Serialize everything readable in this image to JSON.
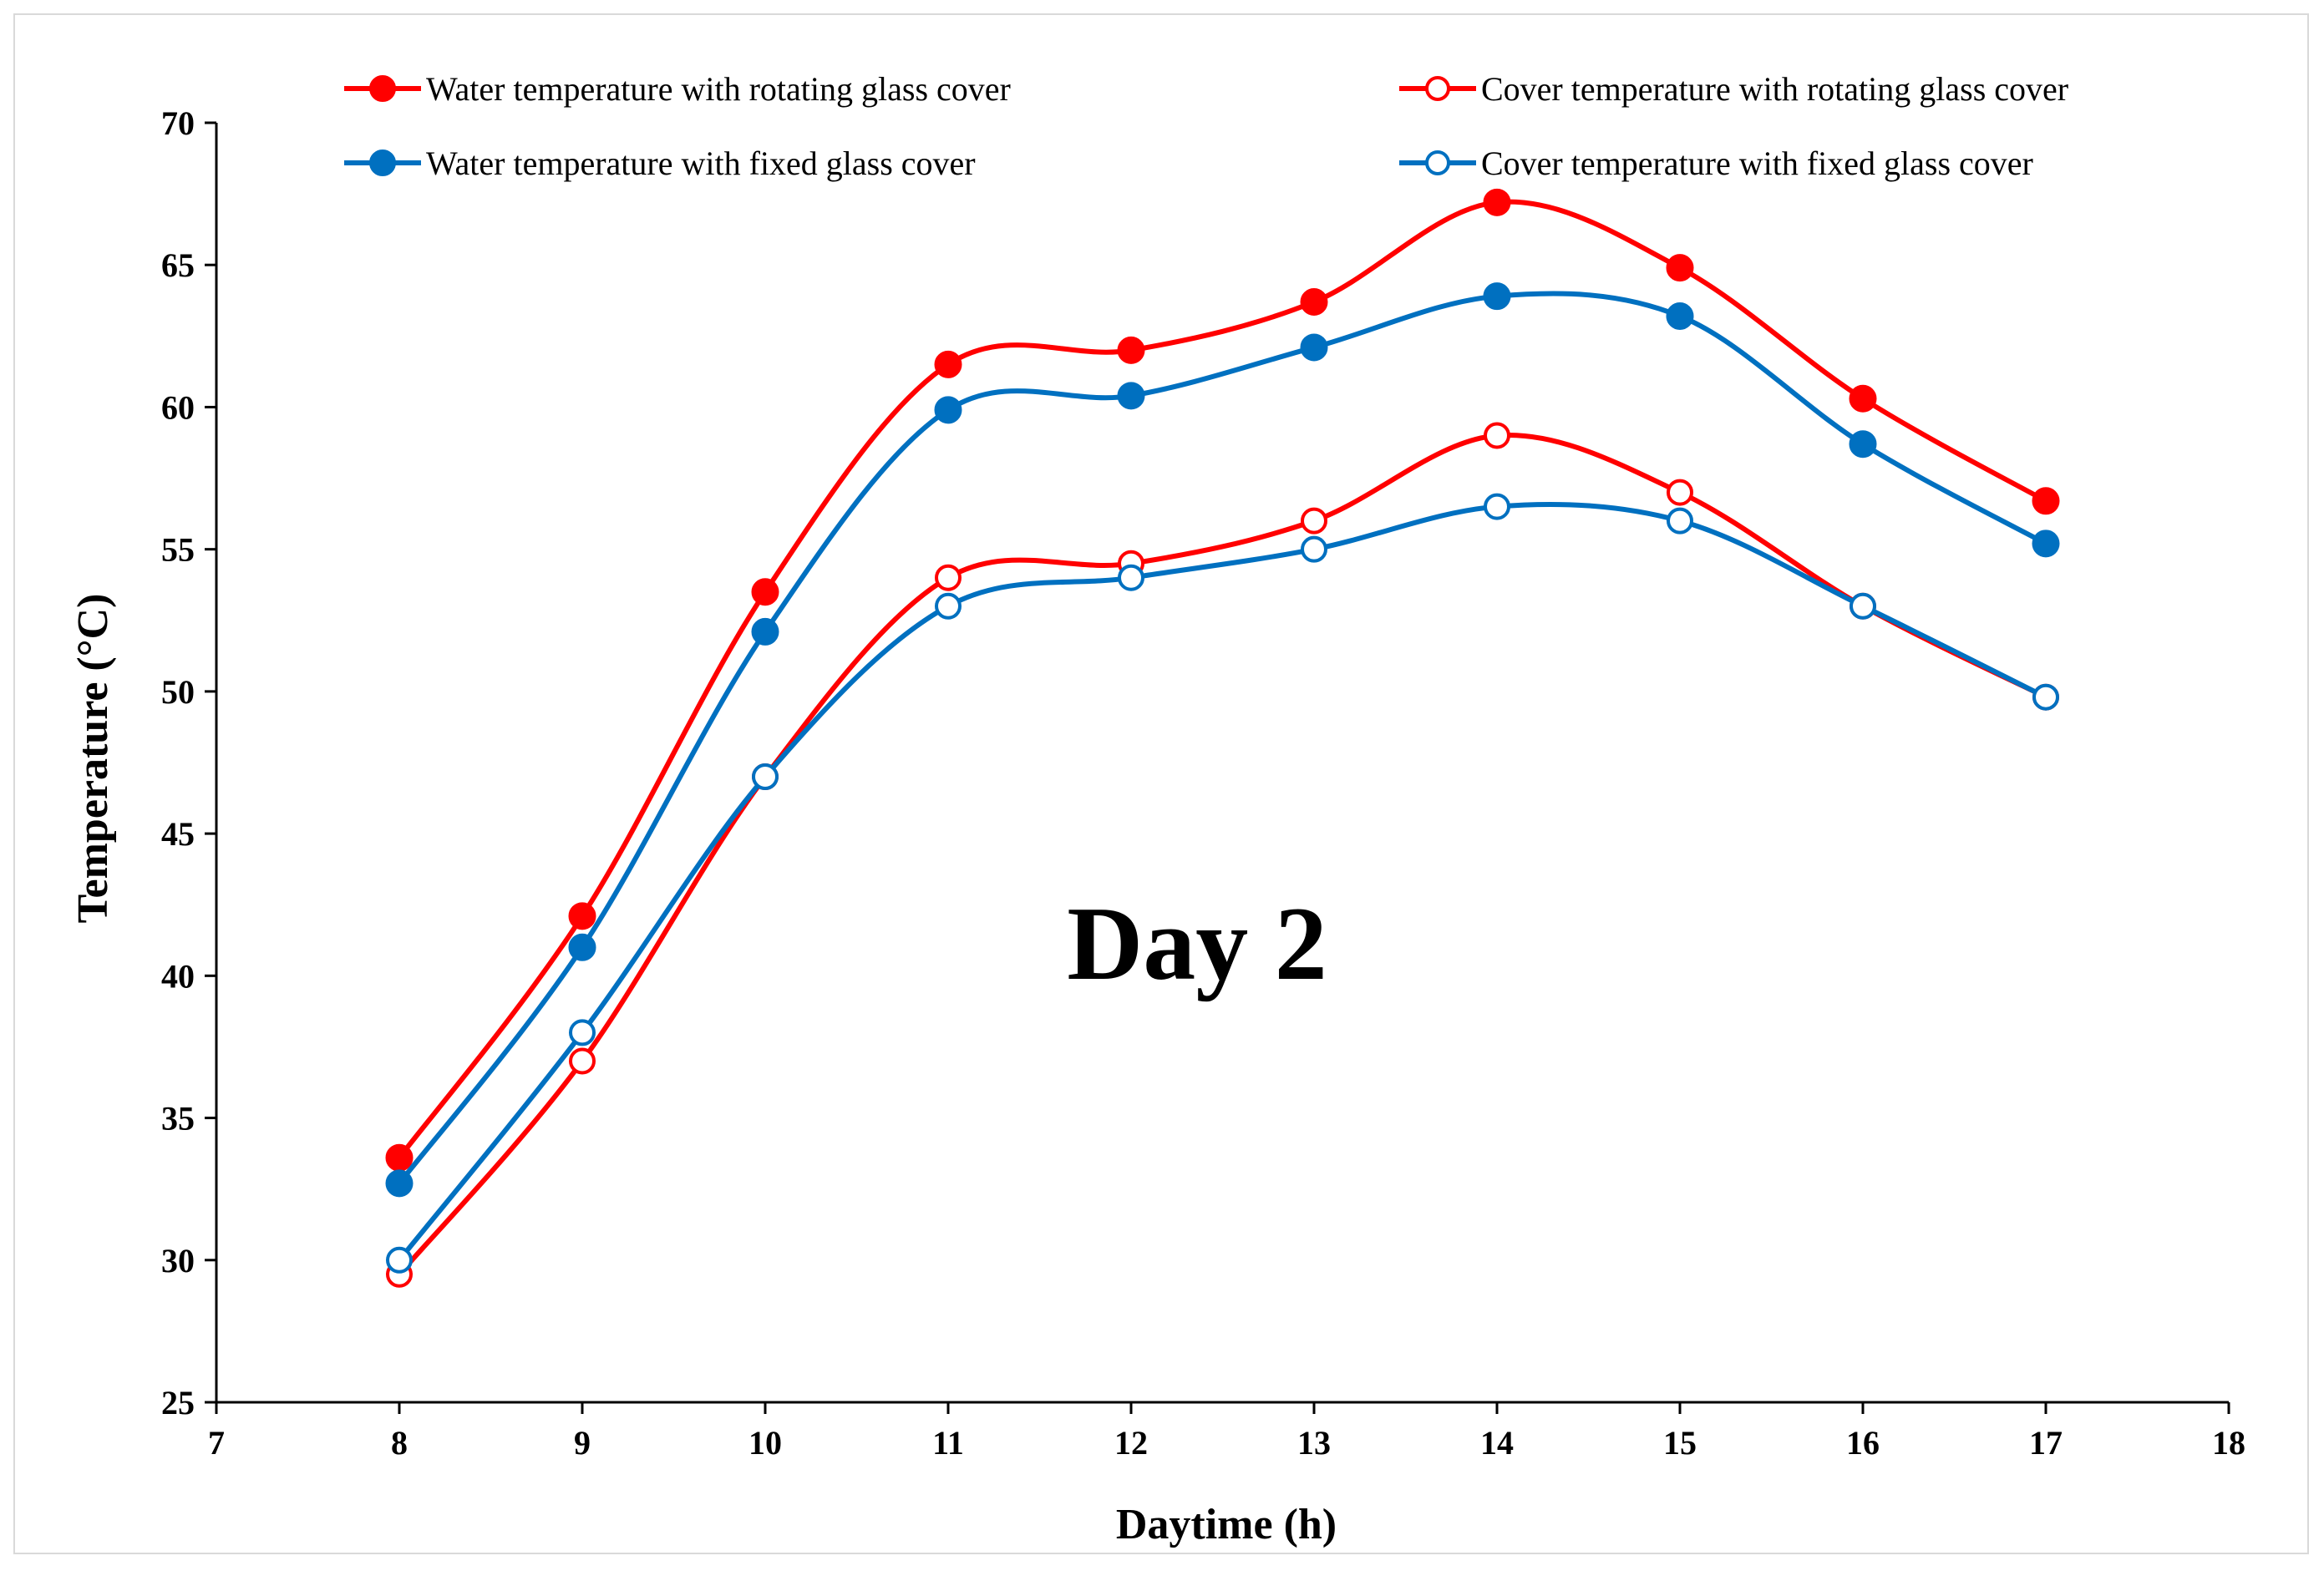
{
  "chart_data": {
    "type": "line",
    "title": "",
    "annotation": "Day 2",
    "xlabel": "Daytime (h)",
    "ylabel": "Temperature (°C)",
    "xlim": [
      7,
      18
    ],
    "ylim": [
      25,
      70
    ],
    "xticks": [
      7,
      8,
      9,
      10,
      11,
      12,
      13,
      14,
      15,
      16,
      17,
      18
    ],
    "yticks": [
      25,
      30,
      35,
      40,
      45,
      50,
      55,
      60,
      65,
      70
    ],
    "grid": false,
    "legend_position": "top",
    "x": [
      8,
      9,
      10,
      11,
      12,
      13,
      14,
      15,
      16,
      17
    ],
    "series": [
      {
        "name": "Water temperature with rotating glass cover",
        "color": "#ff0000",
        "marker": "filled-circle",
        "values": [
          33.6,
          42.1,
          53.5,
          61.5,
          62.0,
          63.7,
          67.2,
          64.9,
          60.3,
          56.7
        ]
      },
      {
        "name": "Cover temperature with rotating glass cover",
        "color": "#ff0000",
        "marker": "open-circle",
        "values": [
          29.5,
          37.0,
          47.0,
          54.0,
          54.5,
          56.0,
          59.0,
          57.0,
          53.0,
          49.8
        ]
      },
      {
        "name": "Water temperature with fixed glass cover",
        "color": "#0070c0",
        "marker": "filled-circle",
        "values": [
          32.7,
          41.0,
          52.1,
          59.9,
          60.4,
          62.1,
          63.9,
          63.2,
          58.7,
          55.2
        ]
      },
      {
        "name": "Cover temperature with fixed glass cover",
        "color": "#0070c0",
        "marker": "open-circle",
        "values": [
          30.0,
          38.0,
          47.0,
          53.0,
          54.0,
          55.0,
          56.5,
          56.0,
          53.0,
          49.8
        ]
      }
    ]
  }
}
